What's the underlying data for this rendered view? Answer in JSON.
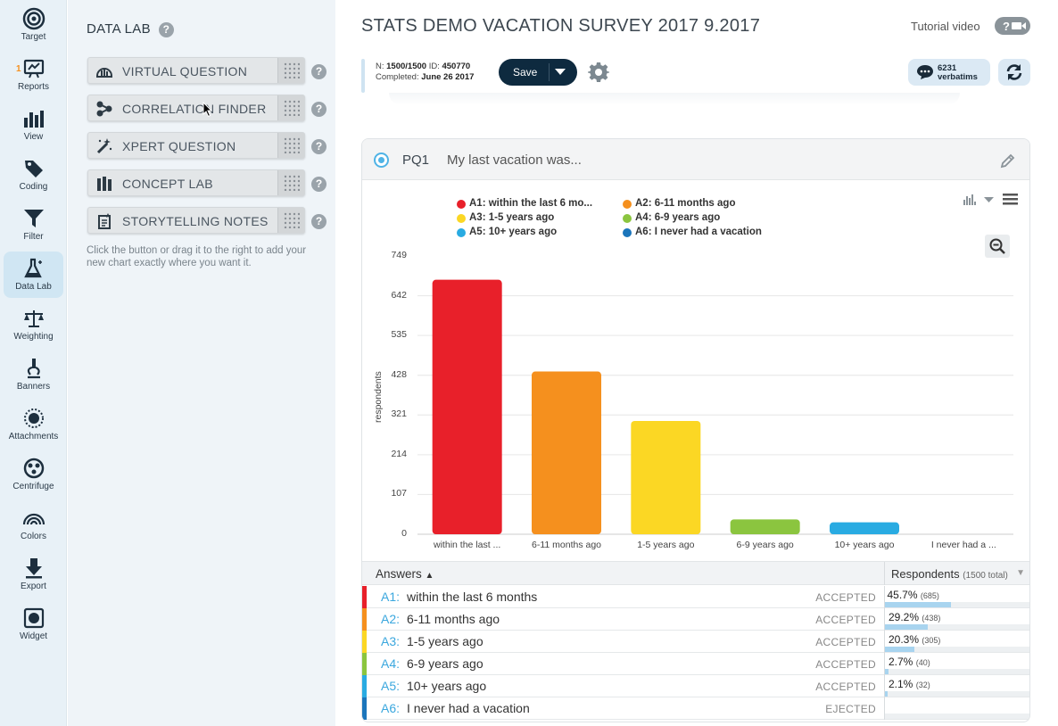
{
  "nav": {
    "items": [
      {
        "label": "Target",
        "icon": "target-icon"
      },
      {
        "label": "Reports",
        "icon": "reports-icon",
        "badge": "1"
      },
      {
        "label": "View",
        "icon": "bar-chart-icon"
      },
      {
        "label": "Coding",
        "icon": "tag-icon"
      },
      {
        "label": "Filter",
        "icon": "filter-icon"
      },
      {
        "label": "Data Lab",
        "icon": "flask-icon"
      },
      {
        "label": "Weighting",
        "icon": "scale-icon"
      },
      {
        "label": "Banners",
        "icon": "microscope-icon"
      },
      {
        "label": "Attachments",
        "icon": "sun-icon"
      },
      {
        "label": "Centrifuge",
        "icon": "centrifuge-icon"
      },
      {
        "label": "Colors",
        "icon": "rainbow-icon"
      },
      {
        "label": "Export",
        "icon": "download-icon"
      },
      {
        "label": "Widget",
        "icon": "widget-icon"
      }
    ],
    "active": "Data Lab"
  },
  "datalab": {
    "title": "DATA LAB",
    "help": "?",
    "tools": [
      {
        "label": "VIRTUAL QUESTION",
        "icon": "virtual-question-icon"
      },
      {
        "label": "CORRELATION FINDER",
        "icon": "correlation-icon"
      },
      {
        "label": "XPERT QUESTION",
        "icon": "magic-wand-icon"
      },
      {
        "label": "CONCEPT LAB",
        "icon": "concept-lab-icon"
      },
      {
        "label": "STORYTELLING NOTES",
        "icon": "notes-icon"
      }
    ],
    "hint": "Click the button or drag it to the right to add your new chart exactly where you want it."
  },
  "header": {
    "survey_title": "STATS DEMO VACATION SURVEY 2017 9.2017",
    "tutorial_label": "Tutorial video",
    "meta_n_label": "N:",
    "meta_n": "1500/1500",
    "meta_id_label": "ID:",
    "meta_id": "450770",
    "meta_completed_label": "Completed:",
    "meta_completed": "June 26 2017",
    "save_label": "Save",
    "verbatims_count": "6231",
    "verbatims_label": "verbatims"
  },
  "question": {
    "code": "PQ1",
    "text": "My last vacation was..."
  },
  "chart_data": {
    "type": "bar",
    "legend": [
      {
        "label": "A1: within the last 6 mo...",
        "color": "#e8202a"
      },
      {
        "label": "A2: 6-11 months ago",
        "color": "#f5901e"
      },
      {
        "label": "A3: 1-5 years ago",
        "color": "#fbd724"
      },
      {
        "label": "A4: 6-9 years ago",
        "color": "#8bc53f"
      },
      {
        "label": "A5: 10+ years ago",
        "color": "#29abe2"
      },
      {
        "label": "A6: I never had a vacation",
        "color": "#1b75bb"
      }
    ],
    "categories": [
      "within the last ...",
      "6-11 months ago",
      "1-5 years ago",
      "6-9 years ago",
      "10+ years ago",
      "I never had a ..."
    ],
    "values": [
      685,
      438,
      305,
      40,
      32,
      0
    ],
    "colors": [
      "#e8202a",
      "#f5901e",
      "#fbd724",
      "#8bc53f",
      "#29abe2",
      "#1b75bb"
    ],
    "yticks": [
      "749",
      "642",
      "535",
      "428",
      "321",
      "214",
      "107",
      "0"
    ],
    "ylim": [
      0,
      749
    ],
    "ylabel": "respondents",
    "grid": true,
    "legend_position": "top"
  },
  "table": {
    "col_answers": "Answers",
    "col_respondents": "Respondents",
    "respondents_total": "(1500 total)",
    "rows": [
      {
        "code": "A1:",
        "text": "within the last 6 months",
        "status": "ACCEPTED",
        "pct": "45.7%",
        "count": "(685)",
        "fraction": 0.457,
        "color": "#e8202a"
      },
      {
        "code": "A2:",
        "text": "6-11 months ago",
        "status": "ACCEPTED",
        "pct": "29.2%",
        "count": "(438)",
        "fraction": 0.292,
        "color": "#f5901e"
      },
      {
        "code": "A3:",
        "text": "1-5 years ago",
        "status": "ACCEPTED",
        "pct": "20.3%",
        "count": "(305)",
        "fraction": 0.203,
        "color": "#fbd724"
      },
      {
        "code": "A4:",
        "text": "6-9 years ago",
        "status": "ACCEPTED",
        "pct": "2.7%",
        "count": "(40)",
        "fraction": 0.027,
        "color": "#8bc53f"
      },
      {
        "code": "A5:",
        "text": "10+ years ago",
        "status": "ACCEPTED",
        "pct": "2.1%",
        "count": "(32)",
        "fraction": 0.021,
        "color": "#29abe2"
      },
      {
        "code": "A6:",
        "text": "I never had a vacation",
        "status": "EJECTED",
        "pct": "",
        "count": "",
        "fraction": 0,
        "color": "#1b75bb"
      }
    ]
  }
}
